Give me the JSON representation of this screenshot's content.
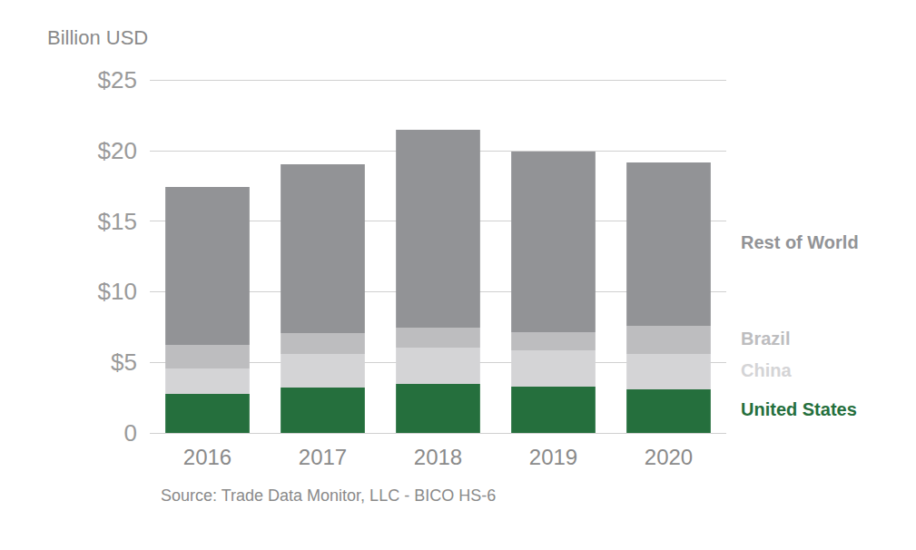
{
  "chart_data": {
    "type": "bar",
    "y_label": "Billion USD",
    "source": "Source: Trade Data Monitor, LLC - BICO HS-6",
    "categories": [
      "2016",
      "2017",
      "2018",
      "2019",
      "2020"
    ],
    "series": [
      {
        "name": "United States",
        "color": "#256f3d",
        "values": [
          2.76,
          3.21,
          3.47,
          3.28,
          3.08
        ]
      },
      {
        "name": "China",
        "color": "#d4d4d6",
        "values": [
          1.8,
          2.38,
          2.57,
          2.57,
          2.51
        ]
      },
      {
        "name": "Brazil",
        "color": "#bdbdbf",
        "values": [
          1.67,
          1.48,
          1.42,
          1.28,
          1.99
        ]
      },
      {
        "name": "Rest of World",
        "color": "#929396",
        "values": [
          11.19,
          11.95,
          14.01,
          12.79,
          11.57
        ]
      }
    ],
    "ylim": [
      0,
      25
    ],
    "yticks": [
      0,
      {
        "value": 5,
        "label": "$5"
      },
      {
        "value": 10,
        "label": "$10"
      },
      {
        "value": 15,
        "label": "$15"
      },
      {
        "value": 20,
        "label": "$20"
      },
      {
        "value": 25,
        "label": "$25"
      }
    ],
    "stacked": true,
    "grid": true,
    "legend": "right"
  }
}
